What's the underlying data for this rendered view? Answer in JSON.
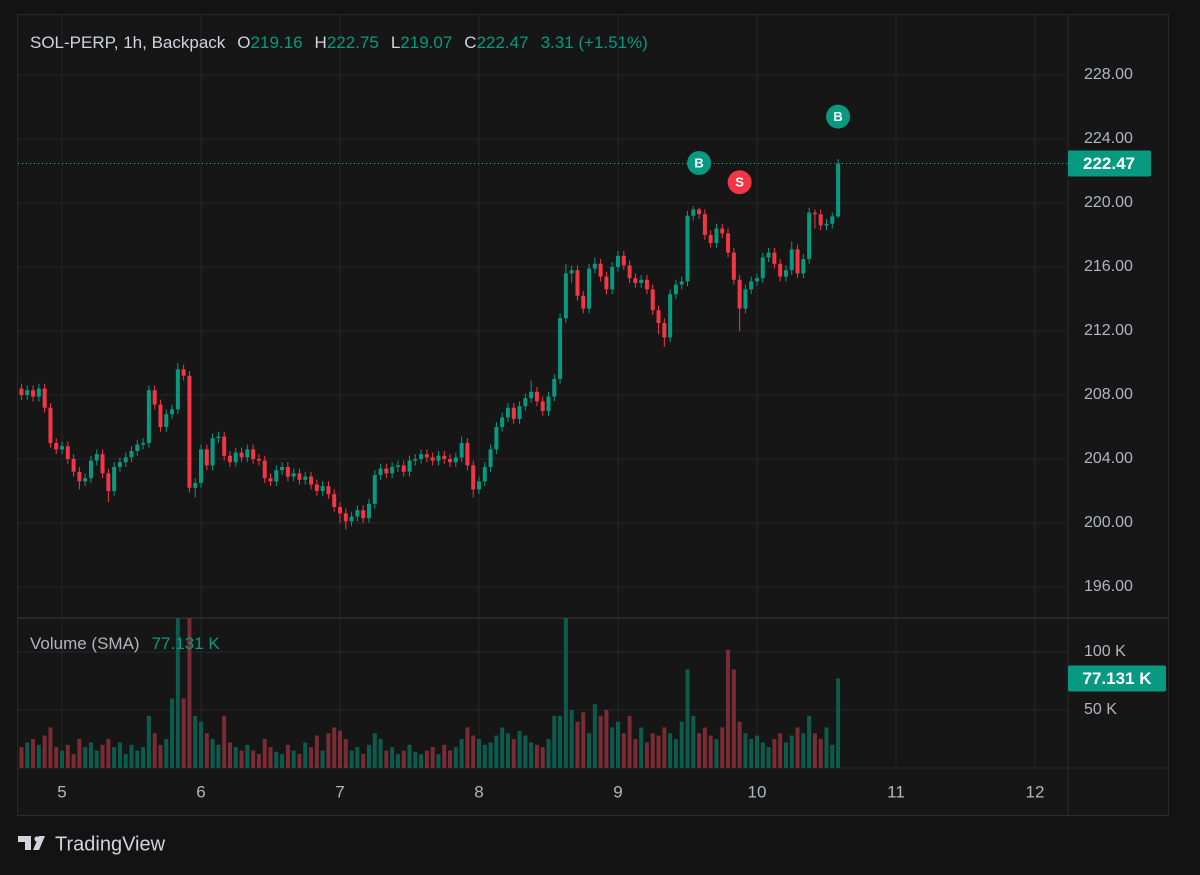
{
  "chart_data": {
    "type": "candlestick",
    "title": "SOL-PERP, 1h, Backpack",
    "ohlc_labels": [
      "O",
      "H",
      "L",
      "C"
    ],
    "change_label": "3.31 (+1.51%)",
    "up_color": "#089981",
    "down_color": "#f23645",
    "volume_up_color": "#0b5c4d",
    "volume_down_color": "#7a2c34",
    "grid": true,
    "watermark": "TradingView",
    "x": [
      -7,
      -6,
      -5,
      -4,
      -3,
      -2,
      -1,
      0,
      1,
      2,
      3,
      4,
      5,
      6,
      7,
      8,
      9,
      10,
      11,
      12,
      13,
      14,
      15,
      16,
      17,
      18,
      19,
      20,
      21,
      22,
      23,
      24,
      25,
      26,
      27,
      28,
      29,
      30,
      31,
      32,
      33,
      34,
      35,
      36,
      37,
      38,
      39,
      40,
      41,
      42,
      43,
      44,
      45,
      46,
      47,
      48,
      49,
      50,
      51,
      52,
      53,
      54,
      55,
      56,
      57,
      58,
      59,
      60,
      61,
      62,
      63,
      64,
      65,
      66,
      67,
      68,
      69,
      70,
      71,
      72,
      73,
      74,
      75,
      76,
      77,
      78,
      79,
      80,
      81,
      82,
      83,
      84,
      85,
      86,
      87,
      88,
      89,
      90,
      91,
      92,
      93,
      94,
      95,
      96,
      97,
      98,
      99,
      100,
      101,
      102,
      103,
      104,
      105,
      106,
      107,
      108,
      109,
      110,
      111,
      112,
      113,
      114,
      115,
      116,
      117,
      118,
      119,
      120,
      121,
      122,
      123,
      124,
      125,
      126,
      127,
      128,
      129,
      130,
      131,
      132,
      133,
      134
    ],
    "open": [
      208.4,
      208.0,
      208.3,
      207.9,
      208.4,
      207.2,
      205.0,
      204.6,
      204.8,
      204.0,
      203.2,
      202.6,
      202.8,
      203.9,
      204.3,
      203.1,
      202.0,
      203.5,
      203.8,
      204.1,
      204.5,
      204.9,
      205.0,
      208.3,
      207.4,
      206.0,
      206.8,
      207.1,
      209.6,
      209.2,
      202.2,
      202.5,
      204.6,
      203.6,
      205.3,
      205.4,
      204.2,
      203.8,
      204.4,
      204.1,
      204.6,
      204.0,
      203.9,
      202.8,
      202.6,
      203.3,
      203.5,
      202.9,
      203.1,
      202.7,
      202.9,
      202.4,
      202.0,
      202.3,
      201.8,
      201.0,
      200.6,
      200.1,
      200.4,
      200.8,
      200.3,
      201.2,
      203.0,
      203.4,
      203.1,
      203.5,
      203.6,
      203.2,
      203.9,
      204.0,
      204.3,
      204.1,
      203.9,
      204.2,
      204.0,
      203.8,
      204.1,
      205.0,
      203.6,
      202.1,
      202.6,
      203.5,
      204.6,
      206.0,
      206.6,
      207.2,
      206.5,
      207.3,
      207.8,
      208.2,
      207.6,
      207.0,
      207.9,
      209.0,
      212.8,
      215.6,
      215.8,
      214.2,
      213.4,
      215.9,
      216.2,
      215.4,
      214.6,
      216.0,
      216.7,
      216.1,
      215.3,
      215.0,
      215.2,
      214.6,
      213.3,
      212.5,
      211.6,
      214.3,
      214.9,
      215.1,
      219.2,
      219.6,
      219.3,
      218.0,
      217.5,
      218.4,
      218.1,
      216.9,
      215.2,
      213.4,
      214.6,
      215.1,
      215.3,
      216.6,
      216.9,
      216.2,
      215.4,
      215.8,
      217.1,
      215.6,
      216.5,
      219.4,
      219.3,
      218.6,
      218.7,
      219.16
    ],
    "high": [
      208.7,
      208.6,
      208.6,
      208.7,
      208.7,
      207.5,
      205.3,
      205.1,
      205.1,
      204.3,
      203.5,
      203.1,
      204.2,
      204.6,
      204.6,
      203.4,
      203.8,
      204.1,
      204.4,
      204.8,
      205.2,
      205.3,
      208.6,
      208.6,
      207.7,
      207.1,
      207.4,
      210.0,
      209.9,
      209.5,
      202.8,
      204.9,
      204.9,
      205.6,
      205.7,
      205.7,
      204.5,
      204.7,
      204.7,
      204.9,
      204.9,
      204.3,
      204.2,
      203.1,
      203.6,
      203.8,
      203.8,
      203.4,
      203.4,
      203.2,
      203.2,
      202.7,
      202.6,
      202.6,
      202.1,
      201.3,
      200.9,
      200.7,
      201.1,
      201.1,
      201.5,
      203.3,
      203.7,
      203.7,
      203.8,
      203.9,
      203.9,
      204.2,
      204.3,
      204.6,
      204.6,
      204.4,
      204.5,
      204.5,
      204.3,
      204.4,
      205.4,
      205.3,
      203.9,
      202.9,
      203.8,
      204.9,
      206.3,
      206.9,
      207.5,
      207.5,
      207.6,
      208.1,
      208.9,
      208.5,
      207.9,
      208.2,
      209.3,
      213.1,
      216.2,
      216.1,
      216.1,
      214.5,
      216.2,
      216.6,
      216.5,
      215.7,
      216.3,
      217.0,
      217.0,
      216.4,
      215.6,
      215.5,
      215.5,
      214.9,
      213.6,
      212.8,
      214.6,
      215.2,
      215.4,
      219.5,
      219.8,
      219.7,
      219.6,
      218.3,
      218.7,
      218.7,
      218.4,
      217.2,
      215.5,
      214.9,
      215.4,
      215.6,
      216.9,
      217.2,
      217.2,
      216.5,
      216.1,
      217.6,
      217.4,
      216.8,
      219.7,
      219.6,
      219.6,
      219.0,
      219.4,
      222.75
    ],
    "low": [
      207.7,
      207.7,
      207.6,
      207.6,
      206.9,
      204.7,
      204.3,
      204.3,
      203.7,
      202.9,
      202.1,
      202.3,
      202.5,
      203.6,
      202.8,
      201.3,
      201.7,
      203.2,
      203.5,
      203.8,
      204.2,
      204.6,
      204.7,
      207.1,
      205.7,
      205.7,
      206.5,
      206.8,
      208.9,
      201.9,
      201.6,
      202.2,
      203.3,
      203.3,
      205.0,
      203.9,
      203.5,
      203.5,
      203.8,
      203.8,
      203.7,
      203.6,
      202.5,
      202.3,
      202.3,
      203.0,
      202.6,
      202.6,
      202.4,
      202.4,
      202.1,
      201.7,
      201.7,
      201.5,
      200.7,
      200.0,
      199.6,
      199.8,
      200.1,
      200.0,
      200.0,
      200.9,
      202.7,
      202.8,
      202.8,
      203.2,
      202.9,
      202.9,
      203.6,
      203.7,
      203.8,
      203.6,
      203.6,
      203.7,
      203.5,
      203.5,
      203.8,
      203.3,
      201.6,
      201.8,
      202.3,
      203.2,
      204.3,
      205.7,
      206.3,
      206.2,
      206.2,
      207.0,
      207.5,
      207.3,
      206.7,
      206.7,
      207.6,
      208.7,
      212.5,
      215.0,
      213.9,
      213.1,
      213.1,
      215.6,
      215.1,
      214.3,
      214.3,
      215.7,
      215.8,
      215.0,
      214.7,
      214.7,
      214.3,
      213.0,
      211.8,
      211.0,
      211.3,
      214.0,
      214.6,
      214.8,
      218.9,
      219.0,
      217.7,
      217.2,
      217.2,
      217.8,
      216.6,
      214.9,
      212.0,
      213.1,
      214.3,
      214.8,
      215.0,
      216.3,
      215.9,
      215.1,
      215.1,
      215.5,
      215.3,
      215.3,
      216.2,
      218.4,
      218.3,
      218.3,
      218.4,
      219.07
    ],
    "close": [
      208.0,
      208.3,
      207.9,
      208.4,
      207.2,
      205.0,
      204.6,
      204.8,
      204.0,
      203.2,
      202.6,
      202.8,
      203.9,
      204.3,
      203.1,
      202.0,
      203.5,
      203.8,
      204.1,
      204.5,
      204.9,
      205.0,
      208.3,
      207.4,
      206.0,
      206.8,
      207.1,
      209.6,
      209.2,
      202.2,
      202.5,
      204.6,
      203.6,
      205.3,
      205.4,
      204.2,
      203.8,
      204.4,
      204.1,
      204.6,
      204.0,
      203.9,
      202.8,
      202.6,
      203.3,
      203.5,
      202.9,
      203.1,
      202.7,
      202.9,
      202.4,
      202.0,
      202.3,
      201.8,
      201.0,
      200.6,
      200.1,
      200.4,
      200.8,
      200.3,
      201.2,
      203.0,
      203.4,
      203.1,
      203.5,
      203.6,
      203.2,
      203.9,
      204.0,
      204.3,
      204.1,
      203.9,
      204.2,
      204.0,
      203.8,
      204.1,
      205.0,
      203.6,
      202.1,
      202.6,
      203.5,
      204.6,
      206.0,
      206.6,
      207.2,
      206.5,
      207.3,
      207.8,
      208.2,
      207.6,
      207.0,
      207.9,
      209.0,
      212.8,
      215.6,
      215.8,
      214.2,
      213.4,
      215.9,
      216.2,
      215.4,
      214.6,
      216.0,
      216.7,
      216.1,
      215.3,
      215.0,
      215.2,
      214.6,
      213.3,
      212.5,
      211.6,
      214.3,
      214.9,
      215.1,
      219.2,
      219.6,
      219.3,
      218.0,
      217.5,
      218.4,
      218.1,
      216.9,
      215.2,
      213.4,
      214.6,
      215.1,
      215.3,
      216.6,
      216.9,
      216.2,
      215.4,
      215.8,
      217.1,
      215.6,
      216.5,
      219.4,
      219.3,
      218.6,
      218.7,
      219.16,
      222.47
    ],
    "xlim": [
      -7.6,
      173.7
    ],
    "xticks": [
      {
        "value": 0,
        "label": "5"
      },
      {
        "value": 24,
        "label": "6"
      },
      {
        "value": 48,
        "label": "7"
      },
      {
        "value": 72,
        "label": "8"
      },
      {
        "value": 96,
        "label": "9"
      },
      {
        "value": 120,
        "label": "10"
      },
      {
        "value": 144,
        "label": "11"
      },
      {
        "value": 168,
        "label": "12"
      }
    ],
    "ylim": [
      194.06,
      231.75
    ],
    "yticks": [
      {
        "value": 196,
        "label": "196.00"
      },
      {
        "value": 200,
        "label": "200.00"
      },
      {
        "value": 204,
        "label": "204.00"
      },
      {
        "value": 208,
        "label": "208.00"
      },
      {
        "value": 212,
        "label": "212.00"
      },
      {
        "value": 216,
        "label": "216.00"
      },
      {
        "value": 220,
        "label": "220.00"
      },
      {
        "value": 224,
        "label": "224.00"
      },
      {
        "value": 228,
        "label": "228.00"
      }
    ],
    "markers": [
      {
        "label": "B",
        "x": 110,
        "y": 222.5,
        "color": "#089981"
      },
      {
        "label": "S",
        "x": 117,
        "y": 221.3,
        "color": "#f23645"
      },
      {
        "label": "B",
        "x": 134,
        "y": 225.4,
        "color": "#089981"
      }
    ],
    "volume": {
      "name": "Volume (SMA)",
      "last_label": "77.131 K",
      "ylim": [
        0,
        129.3
      ],
      "yticks": [
        {
          "value": 50,
          "label": "50 K"
        },
        {
          "value": 100,
          "label": "100 K"
        }
      ],
      "values": [
        18,
        22,
        25,
        20,
        28,
        35,
        18,
        15,
        20,
        12,
        25,
        18,
        22,
        15,
        20,
        25,
        18,
        22,
        12,
        20,
        15,
        18,
        45,
        30,
        20,
        25,
        60,
        129,
        60,
        129,
        45,
        40,
        30,
        25,
        20,
        45,
        22,
        18,
        15,
        20,
        15,
        12,
        25,
        18,
        14,
        12,
        20,
        15,
        12,
        22,
        18,
        28,
        15,
        30,
        35,
        32,
        25,
        15,
        18,
        12,
        20,
        30,
        25,
        15,
        18,
        12,
        15,
        20,
        14,
        12,
        15,
        18,
        12,
        20,
        15,
        18,
        25,
        35,
        28,
        25,
        20,
        22,
        28,
        35,
        30,
        25,
        32,
        28,
        22,
        20,
        18,
        25,
        45,
        45,
        130,
        50,
        40,
        48,
        30,
        55,
        45,
        50,
        35,
        40,
        30,
        45,
        25,
        35,
        22,
        30,
        28,
        35,
        30,
        25,
        40,
        85,
        45,
        30,
        35,
        28,
        25,
        35,
        102,
        85,
        40,
        30,
        25,
        28,
        22,
        18,
        25,
        30,
        22,
        28,
        35,
        30,
        45,
        30,
        25,
        35,
        20,
        77.131
      ]
    }
  }
}
